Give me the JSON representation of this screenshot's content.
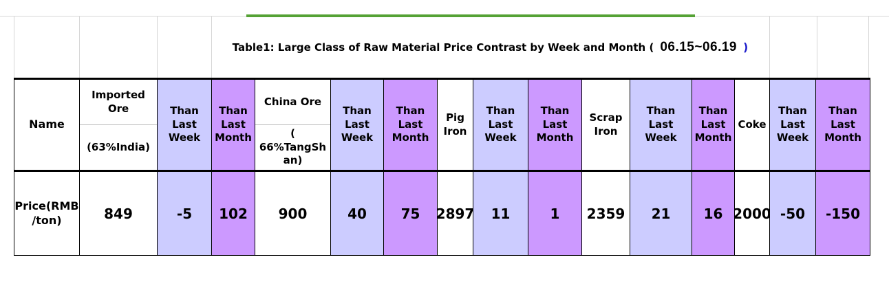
{
  "title": {
    "prefix": "Table1:  Large Class of Raw Material Price Contrast by Week and Month (",
    "date_range": "06.15~06.19",
    "suffix": ")"
  },
  "table": {
    "header": {
      "name": "Name",
      "imported_ore": "Imported Ore",
      "imported_ore_spec": "(63%India)",
      "china_ore": "China Ore",
      "china_ore_spec": "(\n66%TangSh\nan)",
      "than_last_week": "Than\nLast\nWeek",
      "than_last_month": "Than\nLast\nMonth",
      "pig_iron": "Pig Iron",
      "scrap_iron": "Scrap Iron",
      "coke": "Coke"
    },
    "row": {
      "label": "Price(RMB\n/ton)",
      "imported_ore_price": "849",
      "imported_ore_week": "-5",
      "imported_ore_month": "102",
      "china_ore_price": "900",
      "china_ore_week": "40",
      "china_ore_month": "75",
      "pig_iron_price": "2897",
      "pig_iron_week": "11",
      "pig_iron_month": "1",
      "scrap_iron_price": "2359",
      "scrap_iron_week": "21",
      "scrap_iron_month": "16",
      "coke_price": "2000",
      "coke_week": "-50",
      "coke_month": "-150"
    },
    "colors": {
      "week_cell": "#ccccff",
      "month_cell": "#cc99ff",
      "divider_green": "#55a235",
      "title_paren_blue": "#2222cc",
      "gridline_gray": "#d6d6d6"
    }
  }
}
